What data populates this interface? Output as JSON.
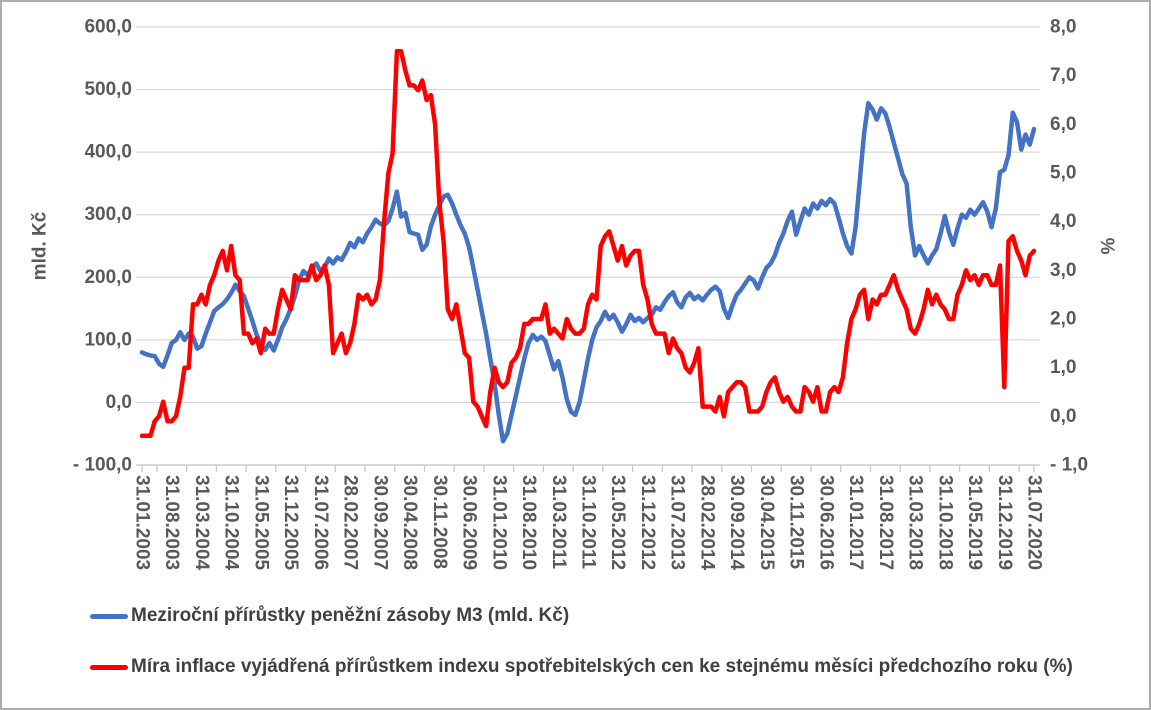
{
  "chart_data": {
    "type": "line",
    "title": "",
    "x_labels": [
      "31.01.2003",
      "31.08.2003",
      "31.03.2004",
      "31.10.2004",
      "31.05.2005",
      "31.12.2005",
      "31.07.2006",
      "28.02.2007",
      "30.09.2007",
      "30.04.2008",
      "30.11.2008",
      "30.06.2009",
      "31.01.2010",
      "31.08.2010",
      "31.03.2011",
      "31.10.2011",
      "31.05.2012",
      "31.12.2012",
      "31.07.2013",
      "28.02.2014",
      "30.09.2014",
      "30.04.2015",
      "30.11.2015",
      "30.06.2016",
      "31.01.2017",
      "31.08.2017",
      "31.03.2018",
      "31.10.2018",
      "31.05.2019",
      "31.12.2019",
      "31.07.2020"
    ],
    "label_every_n_points": 7,
    "grid": "horizontal",
    "legend_position": "bottom-left",
    "left_axis": {
      "label": "mld. Kč",
      "min": -100,
      "max": 600,
      "tick_labels": [
        "600,0",
        "500,0",
        "400,0",
        "300,0",
        "200,0",
        "100,0",
        "0,0",
        "- 100,0"
      ]
    },
    "right_axis": {
      "label": "%",
      "min": -1,
      "max": 8,
      "tick_labels": [
        "8,0",
        "7,0",
        "6,0",
        "5,0",
        "4,0",
        "3,0",
        "2,0",
        "1,0",
        "0,0",
        "- 1,0"
      ]
    },
    "series": [
      {
        "name": "Meziroční přírůstky peněžní zásoby M3 (mld. Kč)",
        "color": "#4472C4",
        "axis": "left",
        "values": [
          80,
          77,
          75,
          74,
          62,
          57,
          75,
          95,
          100,
          112,
          100,
          110,
          105,
          86,
          90,
          110,
          128,
          146,
          152,
          157,
          165,
          175,
          188,
          178,
          170,
          150,
          130,
          108,
          92,
          84,
          95,
          83,
          100,
          120,
          133,
          150,
          170,
          196,
          210,
          203,
          215,
          222,
          210,
          216,
          230,
          222,
          232,
          228,
          240,
          255,
          248,
          262,
          256,
          270,
          280,
          292,
          286,
          283,
          290,
          310,
          337,
          297,
          303,
          272,
          270,
          268,
          244,
          252,
          281,
          300,
          315,
          329,
          332,
          318,
          300,
          283,
          270,
          248,
          215,
          180,
          145,
          110,
          70,
          30,
          -20,
          -62,
          -50,
          -20,
          10,
          40,
          70,
          95,
          108,
          100,
          105,
          98,
          75,
          53,
          66,
          40,
          5,
          -15,
          -20,
          0,
          35,
          70,
          100,
          120,
          130,
          145,
          133,
          140,
          128,
          113,
          125,
          140,
          130,
          135,
          128,
          135,
          140,
          152,
          148,
          160,
          170,
          176,
          160,
          152,
          168,
          175,
          165,
          170,
          163,
          172,
          180,
          185,
          178,
          150,
          135,
          155,
          172,
          180,
          190,
          200,
          195,
          182,
          200,
          215,
          222,
          235,
          255,
          270,
          290,
          305,
          268,
          290,
          310,
          300,
          318,
          310,
          322,
          315,
          325,
          318,
          295,
          270,
          250,
          238,
          280,
          355,
          430,
          478,
          468,
          452,
          470,
          462,
          440,
          415,
          390,
          365,
          350,
          280,
          235,
          250,
          235,
          222,
          235,
          245,
          270,
          298,
          272,
          252,
          278,
          300,
          295,
          308,
          300,
          310,
          320,
          305,
          280,
          310,
          368,
          372,
          395,
          463,
          448,
          404,
          428,
          412,
          437
        ]
      },
      {
        "name": "Míra inflace vyjádřená přírůstkem indexu spotřebitelských cen ke stejnému měsíci předchozího roku (%)",
        "color": "#FF0000",
        "axis": "right",
        "values": [
          -0.4,
          -0.4,
          -0.4,
          -0.1,
          0.0,
          0.3,
          -0.1,
          -0.1,
          0.0,
          0.4,
          1.0,
          1.0,
          2.3,
          2.3,
          2.5,
          2.3,
          2.7,
          2.9,
          3.2,
          3.4,
          3.0,
          3.5,
          2.9,
          2.8,
          1.7,
          1.7,
          1.5,
          1.6,
          1.3,
          1.8,
          1.7,
          1.7,
          2.2,
          2.6,
          2.4,
          2.2,
          2.9,
          2.8,
          2.8,
          2.8,
          3.1,
          2.8,
          2.9,
          3.1,
          2.7,
          1.3,
          1.5,
          1.7,
          1.3,
          1.5,
          1.9,
          2.5,
          2.4,
          2.5,
          2.3,
          2.4,
          2.8,
          4.0,
          5.0,
          5.4,
          7.5,
          7.5,
          7.1,
          6.8,
          6.8,
          6.7,
          6.9,
          6.5,
          6.6,
          6.0,
          4.4,
          3.6,
          2.2,
          2.0,
          2.3,
          1.8,
          1.3,
          1.2,
          0.3,
          0.2,
          0.0,
          -0.2,
          0.5,
          1.0,
          0.7,
          0.6,
          0.7,
          1.1,
          1.2,
          1.4,
          1.9,
          1.9,
          2.0,
          2.0,
          2.0,
          2.3,
          1.7,
          1.8,
          1.7,
          1.6,
          2.0,
          1.8,
          1.7,
          1.7,
          1.8,
          2.3,
          2.5,
          2.4,
          3.5,
          3.7,
          3.8,
          3.5,
          3.2,
          3.5,
          3.1,
          3.3,
          3.4,
          3.4,
          2.7,
          2.4,
          1.9,
          1.7,
          1.7,
          1.7,
          1.3,
          1.6,
          1.4,
          1.3,
          1.0,
          0.9,
          1.1,
          1.4,
          0.2,
          0.2,
          0.2,
          0.1,
          0.4,
          0.0,
          0.5,
          0.6,
          0.7,
          0.7,
          0.6,
          0.1,
          0.1,
          0.1,
          0.2,
          0.5,
          0.7,
          0.8,
          0.5,
          0.3,
          0.4,
          0.2,
          0.1,
          0.1,
          0.6,
          0.5,
          0.3,
          0.6,
          0.1,
          0.1,
          0.5,
          0.6,
          0.5,
          0.8,
          1.5,
          2.0,
          2.2,
          2.5,
          2.6,
          2.0,
          2.4,
          2.3,
          2.5,
          2.5,
          2.7,
          2.9,
          2.6,
          2.4,
          2.2,
          1.8,
          1.7,
          1.9,
          2.2,
          2.6,
          2.3,
          2.5,
          2.3,
          2.2,
          2.0,
          2.0,
          2.5,
          2.7,
          3.0,
          2.8,
          2.9,
          2.7,
          2.9,
          2.9,
          2.7,
          2.7,
          3.1,
          0.6,
          3.6,
          3.7,
          3.4,
          3.2,
          2.9,
          3.3,
          3.4
        ]
      }
    ],
    "styles": {
      "gridline_color": "#D9D9D9",
      "axis_line_color": "#C6C6C6",
      "tick_text_color": "#595959",
      "legend_text_color": "#404040",
      "line_width": 4.5
    }
  },
  "legend": {
    "items": [
      {
        "label": "Meziroční přírůstky peněžní zásoby M3 (mld. Kč)",
        "color": "#4472C4"
      },
      {
        "label": "Míra inflace vyjádřená přírůstkem indexu spotřebitelských cen ke stejnému měsíci předchozího roku (%)",
        "color": "#FF0000"
      }
    ]
  }
}
